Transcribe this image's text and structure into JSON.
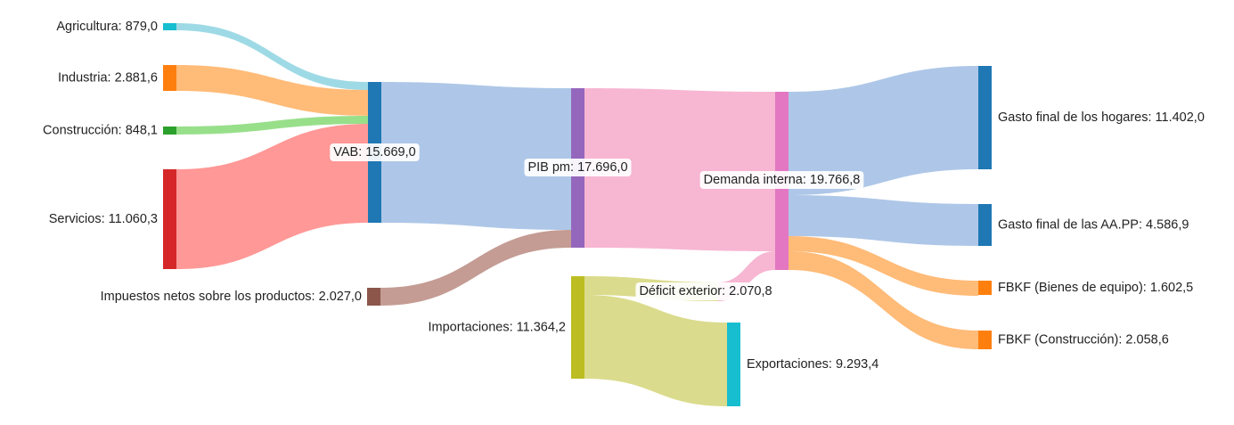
{
  "chart_data": {
    "type": "sankey",
    "value_format": "es (thousands '.', decimal ',')",
    "nodes": [
      {
        "id": "agricultura",
        "label": "Agricultura: 879,0",
        "value": 879.0,
        "color": "#17becf"
      },
      {
        "id": "industria",
        "label": "Industria: 2.881,6",
        "value": 2881.6,
        "color": "#ff7f0e"
      },
      {
        "id": "construccion",
        "label": "Construcción: 848,1",
        "value": 848.1,
        "color": "#2ca02c"
      },
      {
        "id": "servicios",
        "label": "Servicios: 11.060,3",
        "value": 11060.3,
        "color": "#d62728"
      },
      {
        "id": "impuestos",
        "label": "Impuestos netos sobre los productos: 2.027,0",
        "value": 2027.0,
        "color": "#8c564b"
      },
      {
        "id": "vab",
        "label": "VAB: 15.669,0",
        "value": 15669.0,
        "color": "#1f77b4"
      },
      {
        "id": "pib",
        "label": "PIB pm: 17.696,0",
        "value": 17696.0,
        "color": "#9467bd"
      },
      {
        "id": "importaciones",
        "label": "Importaciones: 11.364,2",
        "value": 11364.2,
        "color": "#bcbd22"
      },
      {
        "id": "demanda",
        "label": "Demanda interna: 19.766,8",
        "value": 19766.8,
        "color": "#e377c2"
      },
      {
        "id": "deficit",
        "label": "Déficit exterior: 2.070,8",
        "value": 2070.8,
        "color": "#e377c2"
      },
      {
        "id": "exportaciones",
        "label": "Exportaciones: 9.293,4",
        "value": 9293.4,
        "color": "#17becf"
      },
      {
        "id": "hogares",
        "label": "Gasto final de los hogares: 11.402,0",
        "value": 11402.0,
        "color": "#1f77b4"
      },
      {
        "id": "aapp",
        "label": "Gasto final de las AA.PP: 4.586,9",
        "value": 4586.9,
        "color": "#1f77b4"
      },
      {
        "id": "fbkf_equipo",
        "label": "FBKF (Bienes de equipo): 1.602,5",
        "value": 1602.5,
        "color": "#ff7f0e"
      },
      {
        "id": "fbkf_constr",
        "label": "FBKF (Construcción): 2.058,6",
        "value": 2058.6,
        "color": "#ff7f0e"
      }
    ],
    "links": [
      {
        "source": "agricultura",
        "target": "vab",
        "value": 879.0,
        "color": "#9edae5"
      },
      {
        "source": "industria",
        "target": "vab",
        "value": 2881.6,
        "color": "#ffbb78"
      },
      {
        "source": "construccion",
        "target": "vab",
        "value": 848.1,
        "color": "#98df8a"
      },
      {
        "source": "servicios",
        "target": "vab",
        "value": 11060.3,
        "color": "#ff9896"
      },
      {
        "source": "vab",
        "target": "pib",
        "value": 15669.0,
        "color": "#aec7e8"
      },
      {
        "source": "impuestos",
        "target": "pib",
        "value": 2027.0,
        "color": "#c49c94"
      },
      {
        "source": "pib",
        "target": "demanda",
        "value": 17696.0,
        "color": "#f7b6d2"
      },
      {
        "source": "importaciones",
        "target": "exportaciones",
        "value": 9293.4,
        "color": "#dbdb8d"
      },
      {
        "source": "importaciones",
        "target": "deficit",
        "value": 2070.8,
        "color": "#dbdb8d"
      },
      {
        "source": "deficit",
        "target": "demanda",
        "value": 2070.8,
        "color": "#f7b6d2"
      },
      {
        "source": "demanda",
        "target": "hogares",
        "value": 11402.0,
        "color": "#aec7e8"
      },
      {
        "source": "demanda",
        "target": "aapp",
        "value": 4586.9,
        "color": "#aec7e8"
      },
      {
        "source": "demanda",
        "target": "fbkf_equipo",
        "value": 1602.5,
        "color": "#ffbb78"
      },
      {
        "source": "demanda",
        "target": "fbkf_constr",
        "value": 2058.6,
        "color": "#ffbb78"
      }
    ]
  }
}
